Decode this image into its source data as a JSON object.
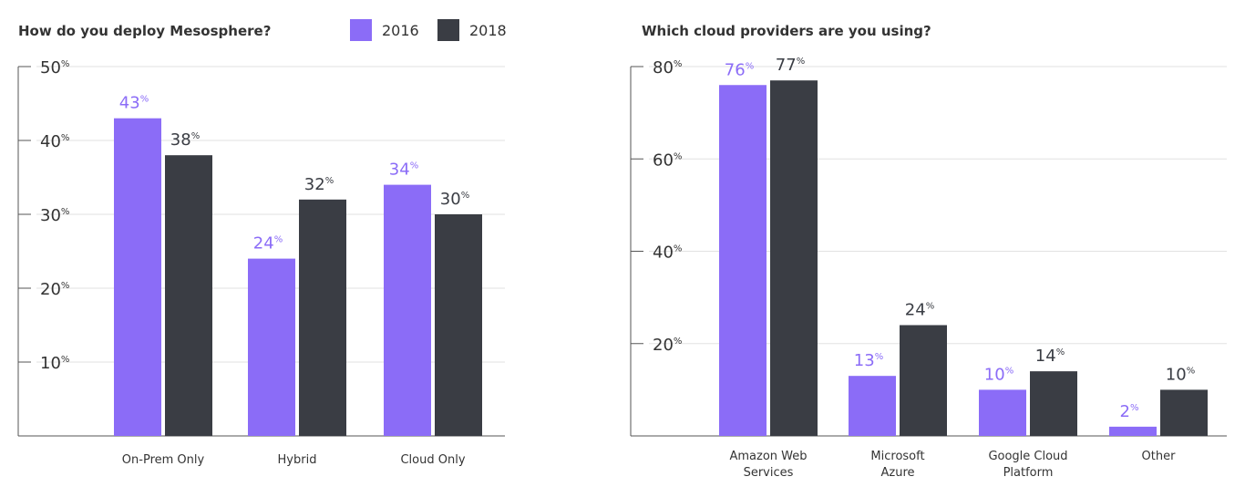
{
  "colors": {
    "s2016": "#8b6cf7",
    "s2018": "#3a3d44",
    "text": "#333333",
    "grid": "#e2e2e2"
  },
  "legend": [
    {
      "label": "2016",
      "color": "#8b6cf7"
    },
    {
      "label": "2018",
      "color": "#3a3d44"
    }
  ],
  "chart_data": [
    {
      "type": "bar",
      "title": "How do you deploy Mesosphere?",
      "categories": [
        [
          "On-Prem Only"
        ],
        [
          "Hybrid"
        ],
        [
          "Cloud Only"
        ]
      ],
      "series": [
        {
          "name": "2016",
          "values": [
            43,
            24,
            34
          ]
        },
        {
          "name": "2018",
          "values": [
            38,
            32,
            30
          ]
        }
      ],
      "yticks": [
        10,
        20,
        30,
        40,
        50
      ],
      "ylim": [
        0,
        50
      ],
      "unit": "%",
      "grid": true,
      "legend": "top-right"
    },
    {
      "type": "bar",
      "title": "Which cloud providers are you using?",
      "categories": [
        [
          "Amazon Web",
          "Services"
        ],
        [
          "Microsoft",
          "Azure"
        ],
        [
          "Google Cloud",
          "Platform"
        ],
        [
          "Other"
        ]
      ],
      "series": [
        {
          "name": "2016",
          "values": [
            76,
            13,
            10,
            2
          ]
        },
        {
          "name": "2018",
          "values": [
            77,
            24,
            14,
            10
          ]
        }
      ],
      "yticks": [
        20,
        40,
        60,
        80
      ],
      "ylim": [
        0,
        80
      ],
      "unit": "%",
      "grid": true
    }
  ]
}
